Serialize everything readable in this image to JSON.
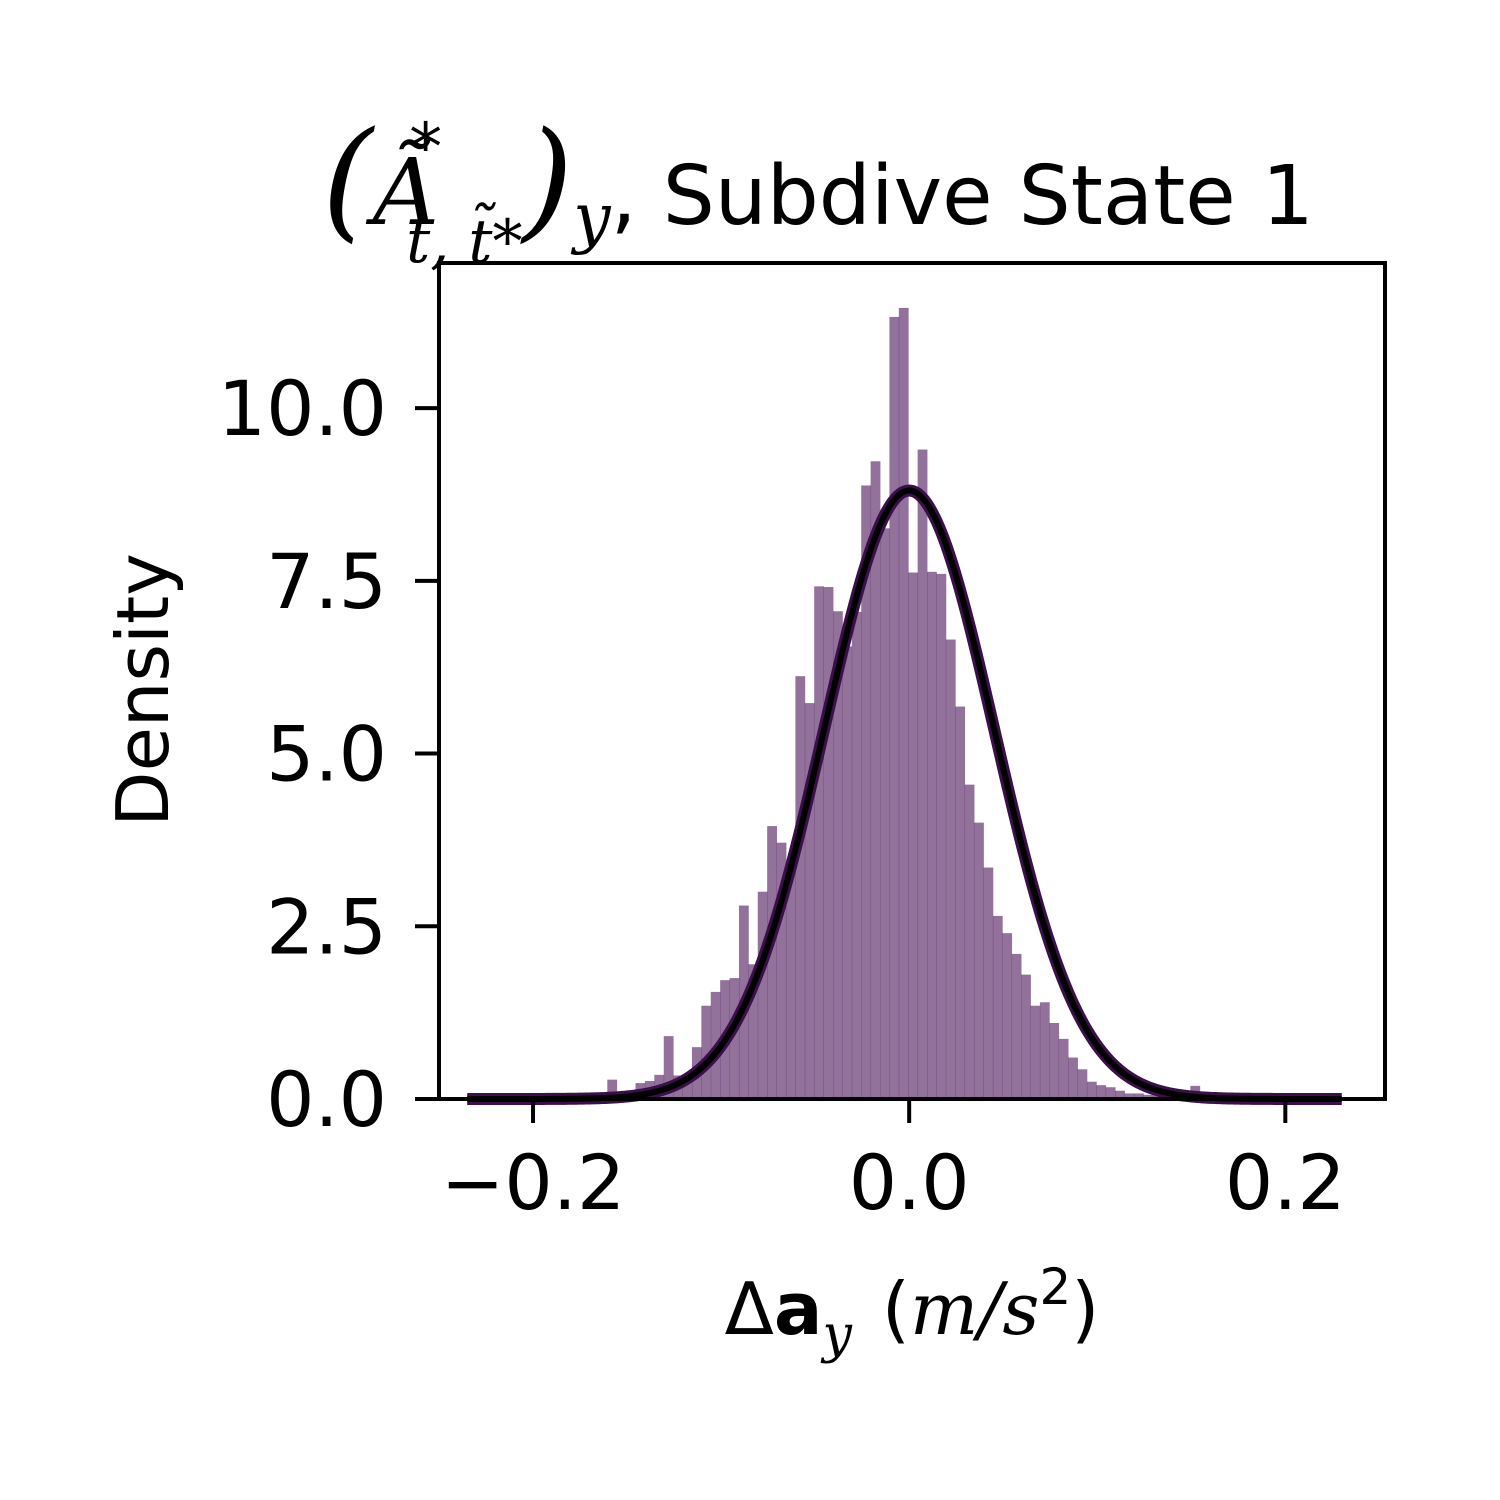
{
  "chart_data": {
    "type": "bar",
    "title": {
      "prefix": "(",
      "symbol": "Ã",
      "superscript": "*",
      "subscript": "t, t̃*",
      "suffix": ")",
      "component": "y",
      "text": ", Subdive State 1"
    },
    "xlabel": {
      "delta": "Δ",
      "bold": "a",
      "subscript": "y",
      "units_open": "(",
      "units": "m/s",
      "units_power": "2",
      "units_close": ")"
    },
    "ylabel": "Density",
    "xlim": [
      -0.25,
      0.253
    ],
    "ylim": [
      0.0,
      12.1
    ],
    "xticks": [
      -0.2,
      0.0,
      0.2
    ],
    "xtick_labels": [
      "−0.2",
      "0.0",
      "0.2"
    ],
    "yticks": [
      0.0,
      2.5,
      5.0,
      7.5,
      10.0
    ],
    "ytick_labels": [
      "0.0",
      "2.5",
      "5.0",
      "7.5",
      "10.0"
    ],
    "grid": false,
    "legend": "none",
    "colors": {
      "bars": "#5e2e6c",
      "bar_opacity": 0.68,
      "fit_outer": "#3a0f4a",
      "fit_inner": "#000000"
    },
    "histogram": {
      "bin_edges": [
        -0.2355,
        -0.2305,
        -0.2255,
        -0.2205,
        -0.2155,
        -0.2105,
        -0.2055,
        -0.2005,
        -0.1955,
        -0.1905,
        -0.1855,
        -0.1805,
        -0.1755,
        -0.1705,
        -0.1655,
        -0.1605,
        -0.1555,
        -0.1505,
        -0.1455,
        -0.1405,
        -0.1355,
        -0.1305,
        -0.1255,
        -0.1205,
        -0.1155,
        -0.1105,
        -0.1055,
        -0.1005,
        -0.0955,
        -0.0905,
        -0.0855,
        -0.0805,
        -0.0755,
        -0.0705,
        -0.0655,
        -0.0605,
        -0.0555,
        -0.0505,
        -0.0455,
        -0.0405,
        -0.0355,
        -0.0305,
        -0.0255,
        -0.0205,
        -0.0155,
        -0.0105,
        -0.0055,
        -0.0005,
        0.0045,
        0.0095,
        0.0145,
        0.0195,
        0.0245,
        0.0295,
        0.0345,
        0.0395,
        0.0445,
        0.0495,
        0.0545,
        0.0595,
        0.0645,
        0.0695,
        0.0745,
        0.0795,
        0.0845,
        0.0895,
        0.0945,
        0.0995,
        0.1045,
        0.1095,
        0.1145,
        0.1195,
        0.1245,
        0.1295,
        0.1345,
        0.1395,
        0.1445,
        0.1495,
        0.1545,
        0.1595,
        0.1645,
        0.1695,
        0.1745,
        0.1795,
        0.1845,
        0.1895,
        0.1945,
        0.1995,
        0.2045,
        0.2095,
        0.2145,
        0.2195,
        0.2245,
        0.2295
      ],
      "densities": [
        0.03,
        0.02,
        0.02,
        0.03,
        0.02,
        0.02,
        0.02,
        0.02,
        0.02,
        0.02,
        0.03,
        0.02,
        0.02,
        0.03,
        0.04,
        0.28,
        0.08,
        0.1,
        0.23,
        0.26,
        0.35,
        0.91,
        0.34,
        0.33,
        0.75,
        1.35,
        1.55,
        1.72,
        1.75,
        2.8,
        1.95,
        3.0,
        3.95,
        3.71,
        3.3,
        6.12,
        5.73,
        7.42,
        7.41,
        7.06,
        6.55,
        7.05,
        8.88,
        9.23,
        8.26,
        11.32,
        11.45,
        7.62,
        9.4,
        7.63,
        7.6,
        6.65,
        5.68,
        4.55,
        4.0,
        3.35,
        2.65,
        2.4,
        2.1,
        1.8,
        1.35,
        1.4,
        1.1,
        0.87,
        0.6,
        0.43,
        0.25,
        0.2,
        0.17,
        0.12,
        0.08,
        0.08,
        0.06,
        0.05,
        0.04,
        0.03,
        0.06,
        0.19,
        0.04,
        0.03,
        0.03,
        0.03,
        0.03,
        0.03,
        0.03,
        0.03,
        0.03,
        0.03,
        0.03,
        0.03,
        0.03,
        0.03,
        0.03
      ]
    },
    "fit_curve": {
      "type": "gaussian",
      "mean": 0.0,
      "std": 0.0453,
      "x_range": [
        -0.235,
        0.23
      ]
    }
  }
}
